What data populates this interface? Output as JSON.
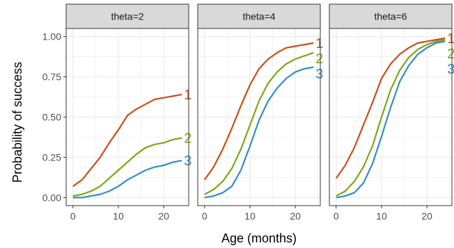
{
  "chart_data": {
    "type": "line",
    "xlabel": "Age (months)",
    "ylabel": "Probability of success",
    "xlim": [
      -1.5,
      25.5
    ],
    "ylim": [
      -0.05,
      1.05
    ],
    "xticks": [
      0,
      10,
      20
    ],
    "yticks": [
      0.0,
      0.25,
      0.5,
      0.75,
      1.0
    ],
    "ytick_labels": [
      "0.00",
      "0.25",
      "0.50",
      "0.75",
      "1.00"
    ],
    "xtick_labels": [
      "0",
      "10",
      "20"
    ],
    "grid": true,
    "colors": {
      "1": "#cc4c14",
      "2": "#7fa514",
      "3": "#2f8ccc"
    },
    "x": [
      0,
      2,
      4,
      6,
      8,
      10,
      12,
      14,
      16,
      18,
      20,
      22,
      24
    ],
    "panels": [
      {
        "title": "theta=2",
        "series": [
          {
            "name": "1",
            "values": [
              0.07,
              0.11,
              0.18,
              0.25,
              0.34,
              0.42,
              0.51,
              0.55,
              0.58,
              0.61,
              0.62,
              0.63,
              0.64
            ]
          },
          {
            "name": "2",
            "values": [
              0.01,
              0.02,
              0.04,
              0.07,
              0.12,
              0.17,
              0.22,
              0.27,
              0.31,
              0.33,
              0.34,
              0.36,
              0.37
            ]
          },
          {
            "name": "3",
            "values": [
              0.0,
              0.0,
              0.01,
              0.02,
              0.04,
              0.07,
              0.11,
              0.14,
              0.17,
              0.19,
              0.2,
              0.22,
              0.23
            ]
          }
        ]
      },
      {
        "title": "theta=4",
        "series": [
          {
            "name": "1",
            "values": [
              0.11,
              0.19,
              0.3,
              0.43,
              0.57,
              0.7,
              0.8,
              0.86,
              0.9,
              0.93,
              0.94,
              0.95,
              0.96
            ]
          },
          {
            "name": "2",
            "values": [
              0.02,
              0.05,
              0.1,
              0.18,
              0.3,
              0.45,
              0.6,
              0.71,
              0.78,
              0.83,
              0.86,
              0.88,
              0.9
            ]
          },
          {
            "name": "3",
            "values": [
              0.0,
              0.01,
              0.03,
              0.07,
              0.17,
              0.32,
              0.48,
              0.6,
              0.68,
              0.74,
              0.78,
              0.8,
              0.81
            ]
          }
        ]
      },
      {
        "title": "theta=6",
        "series": [
          {
            "name": "1",
            "values": [
              0.12,
              0.2,
              0.31,
              0.45,
              0.59,
              0.74,
              0.83,
              0.89,
              0.93,
              0.96,
              0.97,
              0.98,
              0.99
            ]
          },
          {
            "name": "2",
            "values": [
              0.01,
              0.04,
              0.1,
              0.19,
              0.32,
              0.5,
              0.67,
              0.79,
              0.87,
              0.92,
              0.95,
              0.97,
              0.98
            ]
          },
          {
            "name": "3",
            "values": [
              0.0,
              0.01,
              0.03,
              0.09,
              0.21,
              0.38,
              0.56,
              0.72,
              0.82,
              0.89,
              0.93,
              0.96,
              0.97
            ]
          }
        ]
      }
    ]
  }
}
